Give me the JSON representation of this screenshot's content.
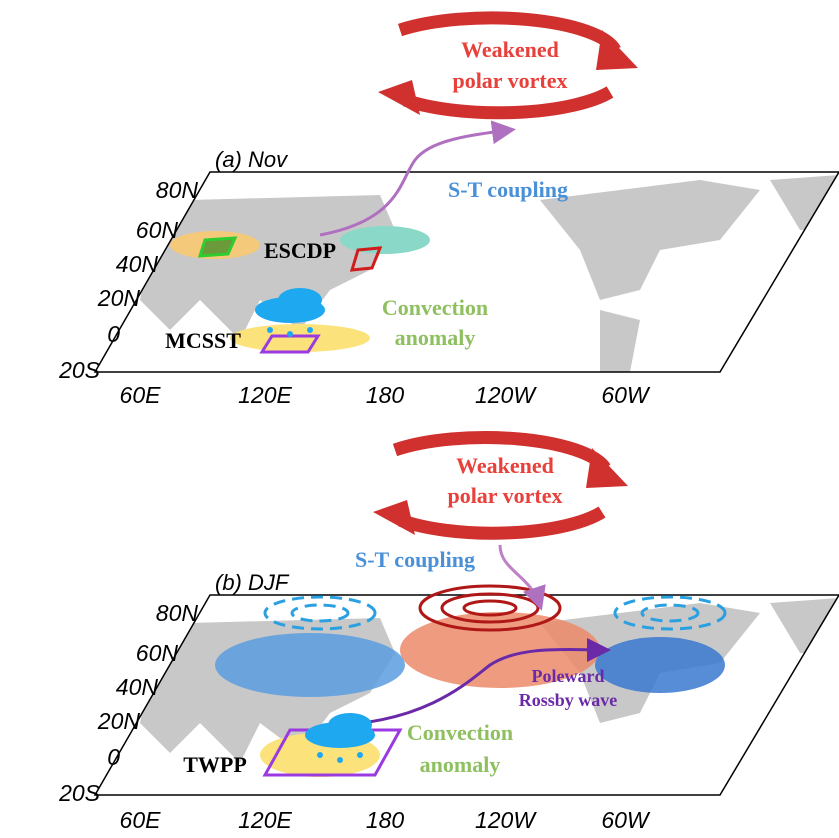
{
  "panels": [
    {
      "title": "(a) Nov",
      "lat_labels": [
        "80N",
        "60N",
        "40N",
        "20N",
        "0",
        "20S"
      ],
      "lon_labels": [
        "60E",
        "120E",
        "180",
        "120W",
        "60W"
      ],
      "vortex_label": [
        "Weakened",
        "polar vortex"
      ],
      "coupling_label": "S-T coupling",
      "region_labels": [
        "ESCDP",
        "MCSST"
      ],
      "convection_label": [
        "Convection",
        "anomaly"
      ]
    },
    {
      "title": "(b) DJF",
      "lat_labels": [
        "80N",
        "60N",
        "40N",
        "20N",
        "0",
        "20S"
      ],
      "lon_labels": [
        "60E",
        "120E",
        "180",
        "120W",
        "60W"
      ],
      "vortex_label": [
        "Weakened",
        "polar vortex"
      ],
      "coupling_label": "S-T coupling",
      "region_labels": [
        "TWPP"
      ],
      "wave_label": [
        "Poleward",
        "Rossby wave"
      ],
      "convection_label": [
        "Convection",
        "anomaly"
      ]
    }
  ]
}
